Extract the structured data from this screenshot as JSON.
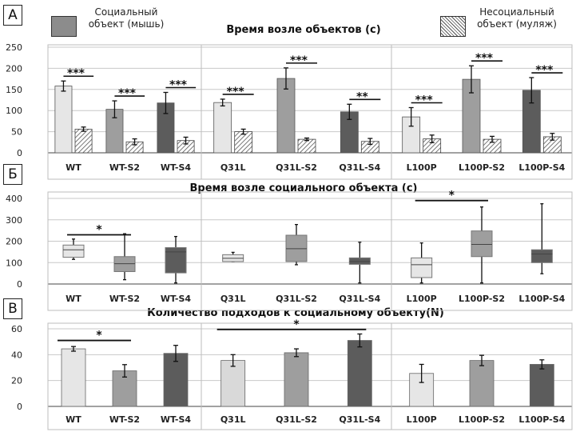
{
  "panels": {
    "a": "А",
    "b": "Б",
    "c": "В"
  },
  "legend": {
    "social_line1": "Социальный",
    "social_line2": "объект (мышь)",
    "nonsocial_line1": "Несоциальный",
    "nonsocial_line2": "объект (муляж)",
    "social_color": "#8c8c8c"
  },
  "chart_data": [
    {
      "type": "bar",
      "title": "Время возле объектов (с)",
      "ylim": [
        0,
        250
      ],
      "yticks": [
        0,
        50,
        100,
        150,
        200,
        250
      ],
      "groups": [
        {
          "categories": [
            "WT",
            "WT-S2",
            "WT-S4"
          ],
          "social": [
            158,
            103,
            118
          ],
          "social_err": [
            12,
            20,
            25
          ],
          "nonsocial": [
            56,
            26,
            29
          ],
          "nonsocial_err": [
            5,
            7,
            8
          ],
          "stars": [
            "***",
            "***",
            "***"
          ]
        },
        {
          "categories": [
            "Q31L",
            "Q31L-S2",
            "Q31L-S4"
          ],
          "social": [
            119,
            176,
            97
          ],
          "social_err": [
            8,
            25,
            18
          ],
          "nonsocial": [
            50,
            32,
            27
          ],
          "nonsocial_err": [
            6,
            3,
            7
          ],
          "stars": [
            "***",
            "***",
            "**"
          ]
        },
        {
          "categories": [
            "L100P",
            "L100P-S2",
            "L100P-S4"
          ],
          "social": [
            85,
            174,
            148
          ],
          "social_err": [
            22,
            32,
            30
          ],
          "nonsocial": [
            33,
            32,
            38
          ],
          "nonsocial_err": [
            9,
            7,
            8
          ],
          "stars": [
            "***",
            "***",
            "***"
          ]
        }
      ]
    },
    {
      "type": "box",
      "title": "Время возле социального объекта (с)",
      "ylim": [
        0,
        400
      ],
      "yticks": [
        0,
        100,
        200,
        300,
        400
      ],
      "groups": [
        {
          "categories": [
            "WT",
            "WT-S2",
            "WT-S4"
          ],
          "boxes": [
            {
              "min": 115,
              "q1": 125,
              "median": 160,
              "q3": 182,
              "max": 210
            },
            {
              "min": 20,
              "q1": 58,
              "median": 95,
              "q3": 128,
              "max": 235
            },
            {
              "min": 5,
              "q1": 52,
              "median": 150,
              "q3": 170,
              "max": 222
            }
          ],
          "sig": {
            "from": 0,
            "to": 1,
            "label": "*"
          }
        },
        {
          "categories": [
            "Q31L",
            "Q31L-S2",
            "Q31L-S4"
          ],
          "boxes": [
            {
              "min": 105,
              "q1": 105,
              "median": 120,
              "q3": 137,
              "max": 148
            },
            {
              "min": 90,
              "q1": 105,
              "median": 165,
              "q3": 228,
              "max": 278
            },
            {
              "min": 5,
              "q1": 92,
              "median": 105,
              "q3": 122,
              "max": 195
            }
          ],
          "sig": null
        },
        {
          "categories": [
            "L100P",
            "L100P-S2",
            "L100P-S4"
          ],
          "boxes": [
            {
              "min": 5,
              "q1": 30,
              "median": 90,
              "q3": 122,
              "max": 192
            },
            {
              "min": 5,
              "q1": 128,
              "median": 185,
              "q3": 248,
              "max": 360
            },
            {
              "min": 48,
              "q1": 100,
              "median": 140,
              "q3": 160,
              "max": 375
            }
          ],
          "sig": {
            "from": 0,
            "to": 1,
            "label": "*"
          }
        }
      ]
    },
    {
      "type": "bar",
      "title": "Количество подходов к социальному объекту(N)",
      "ylim": [
        0,
        60
      ],
      "yticks": [
        0,
        20,
        40,
        60
      ],
      "groups": [
        {
          "categories": [
            "WT",
            "WT-S2",
            "WT-S4"
          ],
          "values": [
            44.5,
            27.5,
            41
          ],
          "errors": [
            1.8,
            4.8,
            6.2
          ],
          "colors": [
            "#e6e6e6",
            "#9e9e9e",
            "#5c5c5c"
          ],
          "sig": {
            "from": 0,
            "to": 1,
            "label": "*"
          }
        },
        {
          "categories": [
            "Q31L",
            "Q31L-S2",
            "Q31L-S4"
          ],
          "values": [
            35.5,
            41.5,
            51
          ],
          "errors": [
            4.5,
            3,
            5
          ],
          "colors": [
            "#d9d9d9",
            "#9e9e9e",
            "#5c5c5c"
          ],
          "sig": {
            "from": 0,
            "to": 2,
            "label": "*"
          }
        },
        {
          "categories": [
            "L100P",
            "L100P-S2",
            "L100P-S4"
          ],
          "values": [
            25.5,
            35.5,
            32.5
          ],
          "errors": [
            7,
            4,
            3.5
          ],
          "colors": [
            "#e6e6e6",
            "#9e9e9e",
            "#5c5c5c"
          ],
          "sig": null
        }
      ]
    }
  ]
}
